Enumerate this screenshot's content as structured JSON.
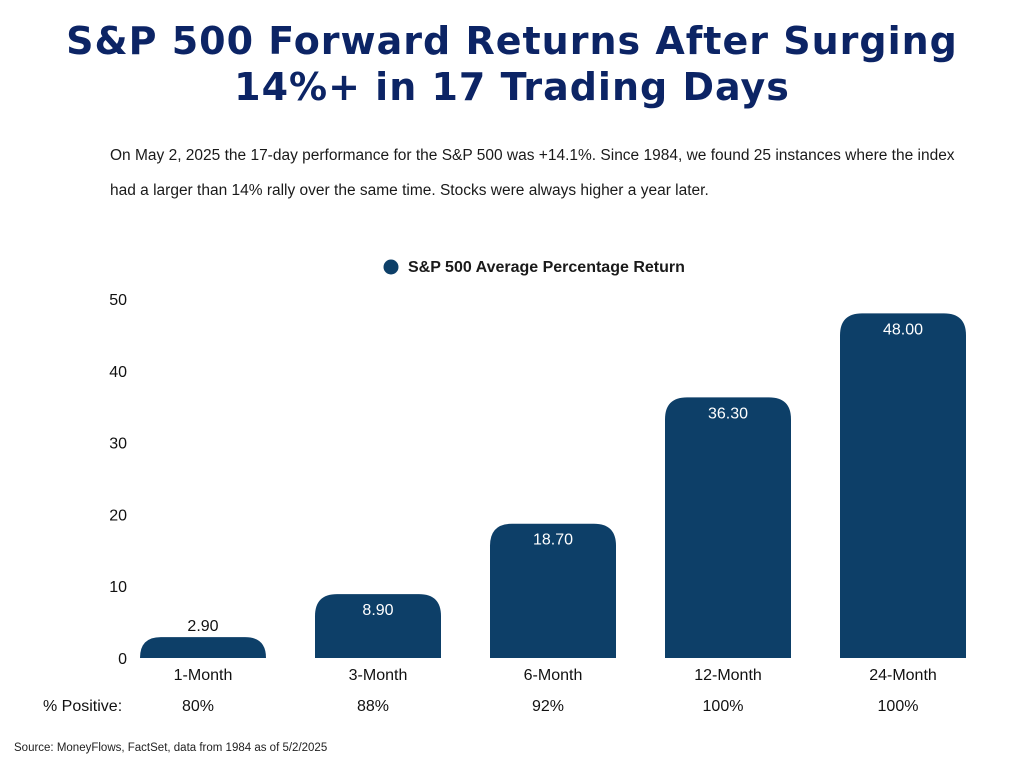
{
  "header": {
    "title_line1": "S&P 500 Forward Returns After Surging",
    "title_line2": "14%+ in 17 Trading Days",
    "subtitle": "On May 2, 2025 the 17-day performance for the S&P 500 was +14.1%. Since 1984, we found 25 instances where the index had a larger than 14% rally over the same time. Stocks were always higher a year later."
  },
  "colors": {
    "title": "#0c2465",
    "bar": "#0d3f68",
    "bar_label_inside": "#ffffff",
    "bar_label_outside": "#111111"
  },
  "chart_data": {
    "type": "bar",
    "categories": [
      "1-Month",
      "3-Month",
      "6-Month",
      "12-Month",
      "24-Month"
    ],
    "values": [
      2.9,
      8.9,
      18.7,
      36.3,
      48.0
    ],
    "data_labels": [
      "2.90",
      "8.90",
      "18.70",
      "36.30",
      "48.00"
    ],
    "series": [
      {
        "name": "S&P 500 Average Percentage Return",
        "values": [
          2.9,
          8.9,
          18.7,
          36.3,
          48.0
        ]
      }
    ],
    "ylim": [
      0,
      50
    ],
    "yticks": [
      0,
      10,
      20,
      30,
      40,
      50
    ],
    "grid": false,
    "legend_position": "top-center",
    "positive_label": "% Positive:",
    "positive_rates": [
      "80%",
      "88%",
      "92%",
      "100%",
      "100%"
    ]
  },
  "footer": {
    "source": "Source: MoneyFlows, FactSet, data from 1984 as of 5/2/2025"
  }
}
